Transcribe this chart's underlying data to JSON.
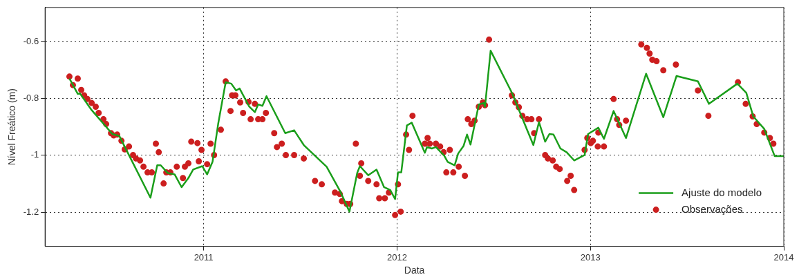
{
  "chart_data": {
    "type": "line",
    "xlabel": "Data",
    "ylabel": "Nível Freático (m)",
    "xlim": [
      2010.18,
      2014
    ],
    "xticks": [
      2011,
      2012,
      2013,
      2014
    ],
    "ylim": [
      -1.32,
      -0.48
    ],
    "yticks": [
      -1.2,
      -1,
      -0.8,
      -0.6
    ],
    "grid": true,
    "legend": "bottom right",
    "series": [
      {
        "name": "Ajuste do modelo",
        "color": "#1a9e1a",
        "marker": "none",
        "line_style": "solid",
        "x": [
          2010.306,
          2010.349,
          2010.36,
          2010.421,
          2010.528,
          2010.564,
          2010.725,
          2010.76,
          2010.778,
          2010.814,
          2010.85,
          2010.886,
          2010.921,
          2010.946,
          2010.993,
          2011.018,
          2011.046,
          2011.075,
          2011.114,
          2011.143,
          2011.168,
          2011.186,
          2011.236,
          2011.265,
          2011.282,
          2011.304,
          2011.325,
          2011.422,
          2011.468,
          2011.518,
          2011.636,
          2011.708,
          2011.754,
          2011.794,
          2011.808,
          2011.851,
          2011.894,
          2011.933,
          2011.965,
          2011.99,
          2012.005,
          2012.022,
          2012.051,
          2012.076,
          2012.144,
          2012.155,
          2012.18,
          2012.201,
          2012.244,
          2012.262,
          2012.298,
          2012.316,
          2012.344,
          2012.362,
          2012.38,
          2012.423,
          2012.448,
          2012.455,
          2012.484,
          2012.594,
          2012.705,
          2012.734,
          2012.766,
          2012.788,
          2012.809,
          2012.845,
          2012.877,
          2012.916,
          2012.97,
          2012.988,
          2013.041,
          2013.07,
          2013.12,
          2013.184,
          2013.288,
          2013.377,
          2013.445,
          2013.556,
          2013.613,
          2013.76,
          2013.806,
          2013.842,
          2013.899,
          2013.953,
          2014
        ],
        "values": [
          -0.73,
          -0.784,
          -0.782,
          -0.841,
          -0.925,
          -0.932,
          -1.149,
          -1.035,
          -1.035,
          -1.062,
          -1.067,
          -1.112,
          -1.08,
          -1.05,
          -1.038,
          -1.067,
          -1.023,
          -0.89,
          -0.743,
          -0.748,
          -0.772,
          -0.765,
          -0.829,
          -0.848,
          -0.821,
          -0.826,
          -0.792,
          -0.922,
          -0.912,
          -0.964,
          -1.04,
          -1.129,
          -1.198,
          -1.062,
          -1.038,
          -1.07,
          -1.05,
          -1.112,
          -1.122,
          -1.154,
          -1.06,
          -1.06,
          -0.895,
          -0.885,
          -0.991,
          -0.971,
          -0.976,
          -0.971,
          -1.001,
          -1.023,
          -1.035,
          -0.994,
          -0.967,
          -0.927,
          -0.962,
          -0.821,
          -0.816,
          -0.829,
          -0.632,
          -0.78,
          -0.964,
          -0.883,
          -0.952,
          -0.925,
          -0.927,
          -0.976,
          -0.989,
          -1.018,
          -0.999,
          -0.925,
          -0.903,
          -0.942,
          -0.844,
          -0.939,
          -0.713,
          -0.866,
          -0.721,
          -0.74,
          -0.819,
          -0.748,
          -0.78,
          -0.863,
          -0.907,
          -1.003,
          -1.003
        ]
      },
      {
        "name": "Observações",
        "type": "scatter",
        "color": "#cc1f1f",
        "marker": "circle",
        "x": [
          2010.306,
          2010.324,
          2010.349,
          2010.367,
          2010.382,
          2010.399,
          2010.421,
          2010.442,
          2010.457,
          2010.482,
          2010.496,
          2010.521,
          2010.535,
          2010.553,
          2010.575,
          2010.592,
          2010.614,
          2010.635,
          2010.65,
          2010.671,
          2010.689,
          2010.71,
          2010.732,
          2010.753,
          2010.768,
          2010.793,
          2010.807,
          2010.828,
          2010.861,
          2010.893,
          2010.903,
          2010.921,
          2010.936,
          2010.968,
          2010.975,
          2010.989,
          2011.018,
          2011.036,
          2011.054,
          2011.089,
          2011.114,
          2011.139,
          2011.147,
          2011.164,
          2011.189,
          2011.204,
          2011.232,
          2011.243,
          2011.265,
          2011.282,
          2011.304,
          2011.322,
          2011.365,
          2011.379,
          2011.404,
          2011.425,
          2011.468,
          2011.518,
          2011.576,
          2011.611,
          2011.679,
          2011.704,
          2011.715,
          2011.74,
          2011.758,
          2011.787,
          2011.808,
          2011.815,
          2011.851,
          2011.894,
          2011.908,
          2011.937,
          2011.958,
          2011.99,
          2012.005,
          2012.019,
          2012.047,
          2012.062,
          2012.08,
          2012.144,
          2012.158,
          2012.169,
          2012.201,
          2012.223,
          2012.241,
          2012.255,
          2012.273,
          2012.291,
          2012.319,
          2012.351,
          2012.366,
          2012.384,
          2012.401,
          2012.423,
          2012.444,
          2012.455,
          2012.476,
          2012.594,
          2012.612,
          2012.63,
          2012.648,
          2012.673,
          2012.695,
          2012.709,
          2012.734,
          2012.766,
          2012.78,
          2012.805,
          2012.823,
          2012.841,
          2012.88,
          2012.898,
          2012.916,
          2012.97,
          2012.984,
          2013.002,
          2013.013,
          2013.038,
          2013.041,
          2013.07,
          2013.12,
          2013.138,
          2013.149,
          2013.184,
          2013.263,
          2013.292,
          2013.306,
          2013.32,
          2013.342,
          2013.377,
          2013.442,
          2013.556,
          2013.61,
          2013.763,
          2013.803,
          2013.839,
          2013.86,
          2013.899,
          2013.928,
          2013.946
        ],
        "values": [
          -0.723,
          -0.753,
          -0.73,
          -0.77,
          -0.789,
          -0.802,
          -0.816,
          -0.829,
          -0.851,
          -0.873,
          -0.89,
          -0.922,
          -0.93,
          -0.927,
          -0.949,
          -0.979,
          -0.969,
          -0.999,
          -1.011,
          -1.018,
          -1.04,
          -1.06,
          -1.06,
          -0.959,
          -0.989,
          -1.099,
          -1.06,
          -1.06,
          -1.04,
          -1.08,
          -1.04,
          -1.028,
          -0.952,
          -0.957,
          -1.021,
          -0.981,
          -1.031,
          -0.959,
          -0.999,
          -0.91,
          -0.74,
          -0.844,
          -0.789,
          -0.789,
          -0.814,
          -0.851,
          -0.812,
          -0.873,
          -0.819,
          -0.873,
          -0.873,
          -0.851,
          -0.922,
          -0.971,
          -0.959,
          -0.999,
          -0.999,
          -1.011,
          -1.09,
          -1.102,
          -1.131,
          -1.136,
          -1.161,
          -1.171,
          -1.171,
          -0.959,
          -1.072,
          -1.028,
          -1.09,
          -1.102,
          -1.151,
          -1.151,
          -1.131,
          -1.21,
          -1.102,
          -1.198,
          -0.927,
          -0.981,
          -0.861,
          -0.959,
          -0.939,
          -0.959,
          -0.959,
          -0.969,
          -0.989,
          -1.06,
          -0.981,
          -1.06,
          -1.04,
          -1.072,
          -0.873,
          -0.89,
          -0.878,
          -0.829,
          -0.814,
          -0.824,
          -0.593,
          -0.789,
          -0.814,
          -0.831,
          -0.861,
          -0.873,
          -0.873,
          -0.922,
          -0.873,
          -0.999,
          -1.011,
          -1.018,
          -1.04,
          -1.048,
          -1.09,
          -1.072,
          -1.122,
          -0.981,
          -0.939,
          -0.957,
          -0.949,
          -0.969,
          -0.92,
          -0.969,
          -0.802,
          -0.873,
          -0.893,
          -0.878,
          -0.61,
          -0.622,
          -0.642,
          -0.664,
          -0.669,
          -0.701,
          -0.681,
          -0.772,
          -0.861,
          -0.743,
          -0.819,
          -0.863,
          -0.89,
          -0.92,
          -0.939,
          -0.959
        ]
      }
    ]
  }
}
